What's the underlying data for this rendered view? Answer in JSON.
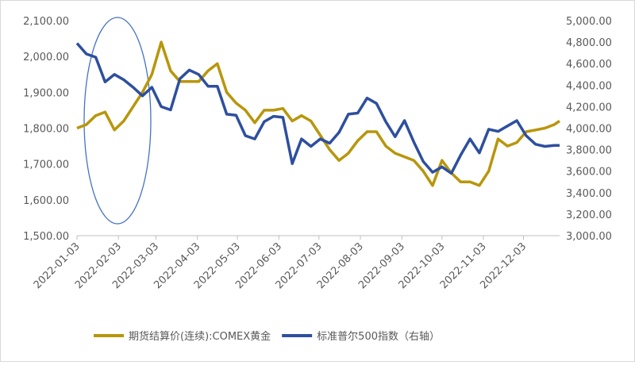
{
  "chart_data": {
    "type": "line",
    "x": [
      "2022-01-03",
      "2022-01-10",
      "2022-01-17",
      "2022-01-24",
      "2022-01-31",
      "2022-02-07",
      "2022-02-14",
      "2022-02-21",
      "2022-02-28",
      "2022-03-07",
      "2022-03-14",
      "2022-03-21",
      "2022-03-28",
      "2022-04-04",
      "2022-04-11",
      "2022-04-18",
      "2022-04-25",
      "2022-05-02",
      "2022-05-09",
      "2022-05-16",
      "2022-05-23",
      "2022-05-30",
      "2022-06-06",
      "2022-06-13",
      "2022-06-20",
      "2022-06-27",
      "2022-07-04",
      "2022-07-11",
      "2022-07-18",
      "2022-07-25",
      "2022-08-01",
      "2022-08-08",
      "2022-08-15",
      "2022-08-22",
      "2022-08-29",
      "2022-09-05",
      "2022-09-12",
      "2022-09-19",
      "2022-09-26",
      "2022-10-03",
      "2022-10-10",
      "2022-10-17",
      "2022-10-24",
      "2022-10-31",
      "2022-11-07",
      "2022-11-14",
      "2022-11-21",
      "2022-11-28",
      "2022-12-05",
      "2022-12-12",
      "2022-12-19",
      "2022-12-26",
      "2022-12-30"
    ],
    "xlim": [
      "2022-01-03",
      "2022-12-30"
    ],
    "xticks": [
      "2022-01-03",
      "2022-02-03",
      "2022-03-03",
      "2022-04-03",
      "2022-05-03",
      "2022-06-03",
      "2022-07-03",
      "2022-08-03",
      "2022-09-03",
      "2022-10-03",
      "2022-11-03",
      "2022-12-03"
    ],
    "ylim": [
      1500,
      2100
    ],
    "yticks": [
      {
        "value": 1500,
        "label": "1,500.00"
      },
      {
        "value": 1600,
        "label": "1,600.00"
      },
      {
        "value": 1700,
        "label": "1,700.00"
      },
      {
        "value": 1800,
        "label": "1,800.00"
      },
      {
        "value": 1900,
        "label": "1,900.00"
      },
      {
        "value": 2000,
        "label": "2,000.00"
      },
      {
        "value": 2100,
        "label": "2,100.00"
      }
    ],
    "y2lim": [
      3000,
      5000
    ],
    "y2ticks": [
      {
        "value": 3000,
        "label": "3,000.00"
      },
      {
        "value": 3200,
        "label": "3,200.00"
      },
      {
        "value": 3400,
        "label": "3,400.00"
      },
      {
        "value": 3600,
        "label": "3,600.00"
      },
      {
        "value": 3800,
        "label": "3,800.00"
      },
      {
        "value": 4000,
        "label": "4,000.00"
      },
      {
        "value": 4200,
        "label": "4,200.00"
      },
      {
        "value": 4400,
        "label": "4,400.00"
      },
      {
        "value": 4600,
        "label": "4,600.00"
      },
      {
        "value": 4800,
        "label": "4,800.00"
      },
      {
        "value": 5000,
        "label": "5,000.00"
      }
    ],
    "series": [
      {
        "name": "期货结算价(连续):COMEX黄金",
        "color": "#B8960C",
        "values": [
          1800,
          1810,
          1835,
          1845,
          1795,
          1820,
          1860,
          1900,
          1950,
          2040,
          1960,
          1930,
          1930,
          1930,
          1960,
          1980,
          1900,
          1870,
          1850,
          1815,
          1850,
          1850,
          1855,
          1820,
          1835,
          1820,
          1780,
          1740,
          1710,
          1730,
          1765,
          1790,
          1790,
          1750,
          1730,
          1720,
          1710,
          1680,
          1640,
          1710,
          1675,
          1650,
          1650,
          1640,
          1680,
          1770,
          1750,
          1760,
          1790,
          1795,
          1800,
          1810,
          1820
        ]
      },
      {
        "name": "标准普尔500指数（右轴）",
        "color": "#2E4F9E",
        "axis": "y2",
        "values": [
          4790,
          4690,
          4660,
          4430,
          4500,
          4450,
          4380,
          4300,
          4380,
          4200,
          4170,
          4460,
          4540,
          4500,
          4390,
          4390,
          4130,
          4120,
          3930,
          3900,
          4060,
          4110,
          4100,
          3670,
          3900,
          3830,
          3900,
          3860,
          3960,
          4130,
          4140,
          4280,
          4230,
          4060,
          3920,
          4070,
          3870,
          3690,
          3590,
          3640,
          3580,
          3750,
          3900,
          3770,
          3990,
          3970,
          4020,
          4070,
          3930,
          3850,
          3830,
          3840,
          3840
        ]
      }
    ]
  }
}
